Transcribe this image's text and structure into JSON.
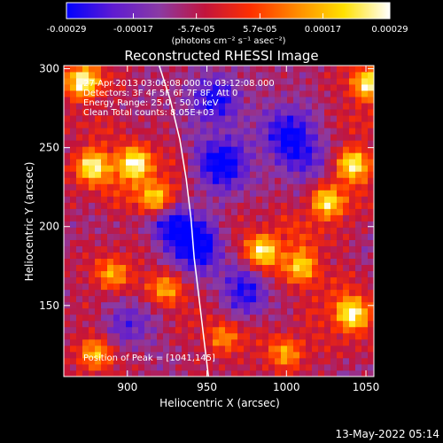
{
  "chart_data": {
    "type": "heatmap",
    "title": "Reconstructed RHESSI Image",
    "xlabel": "Heliocentric X (arcsec)",
    "ylabel": "Heliocentric Y (arcsec)",
    "xlim": [
      860,
      1055
    ],
    "ylim": [
      105,
      302
    ],
    "x_ticks": [
      900,
      950,
      1000,
      1050
    ],
    "y_ticks": [
      150,
      200,
      250,
      300
    ],
    "colorbar": {
      "range": [
        -0.00029,
        0.00029
      ],
      "tick_labels": [
        "-0.00029",
        "-0.00017",
        "-5.7e-05",
        "5.7e-05",
        "0.00017",
        "0.00029"
      ],
      "tick_values": [
        -0.00029,
        -0.00017,
        -5.7e-05,
        5.7e-05,
        0.00017,
        0.00029
      ],
      "unit_label": "(photons cm⁻² s⁻¹ asec⁻²)",
      "colors": [
        "#0000ff",
        "#5e1bd2",
        "#8a3aa4",
        "#c2143c",
        "#ff3000",
        "#ff8c00",
        "#ffe000",
        "#ffffff"
      ]
    },
    "annotations": [
      "27-Apr-2013 03:06:08.000 to 03:12:08.000",
      "Detectors: 3F 4F 5F 6F 7F 8F, Att 0",
      "Energy Range: 25.0 - 50.0 keV",
      "Clean    Total counts: 8.05E+03"
    ],
    "peak_label": "Position of Peak = [1041,145]",
    "peak": [
      1041,
      145
    ],
    "limb_curve": [
      [
        920,
        302
      ],
      [
        927,
        280
      ],
      [
        933,
        255
      ],
      [
        937,
        230
      ],
      [
        940,
        205
      ],
      [
        942,
        180
      ],
      [
        945,
        155
      ],
      [
        948,
        130
      ],
      [
        951,
        105
      ]
    ],
    "hot_spots": [
      {
        "x": 872,
        "y": 292,
        "v": 0.95
      },
      {
        "x": 878,
        "y": 238,
        "v": 0.85
      },
      {
        "x": 905,
        "y": 240,
        "v": 0.82
      },
      {
        "x": 918,
        "y": 218,
        "v": 0.72
      },
      {
        "x": 985,
        "y": 185,
        "v": 0.85
      },
      {
        "x": 1010,
        "y": 175,
        "v": 0.72
      },
      {
        "x": 1025,
        "y": 215,
        "v": 0.82
      },
      {
        "x": 1042,
        "y": 240,
        "v": 0.85
      },
      {
        "x": 1052,
        "y": 290,
        "v": 0.9
      },
      {
        "x": 1041,
        "y": 145,
        "v": 1.0
      },
      {
        "x": 890,
        "y": 170,
        "v": 0.62
      },
      {
        "x": 925,
        "y": 160,
        "v": 0.6
      },
      {
        "x": 880,
        "y": 120,
        "v": 0.65
      },
      {
        "x": 1000,
        "y": 120,
        "v": 0.62
      },
      {
        "x": 960,
        "y": 130,
        "v": 0.55
      }
    ],
    "cold_spots": [
      {
        "x": 960,
        "y": 240,
        "v": -0.8
      },
      {
        "x": 945,
        "y": 185,
        "v": -0.7
      },
      {
        "x": 1000,
        "y": 260,
        "v": -0.65
      },
      {
        "x": 930,
        "y": 200,
        "v": -0.75
      },
      {
        "x": 975,
        "y": 160,
        "v": -0.65
      },
      {
        "x": 955,
        "y": 280,
        "v": -0.6
      },
      {
        "x": 1015,
        "y": 240,
        "v": -0.55
      },
      {
        "x": 900,
        "y": 140,
        "v": -0.5
      }
    ]
  },
  "footer": {
    "date": "13-May-2022 05:14"
  }
}
